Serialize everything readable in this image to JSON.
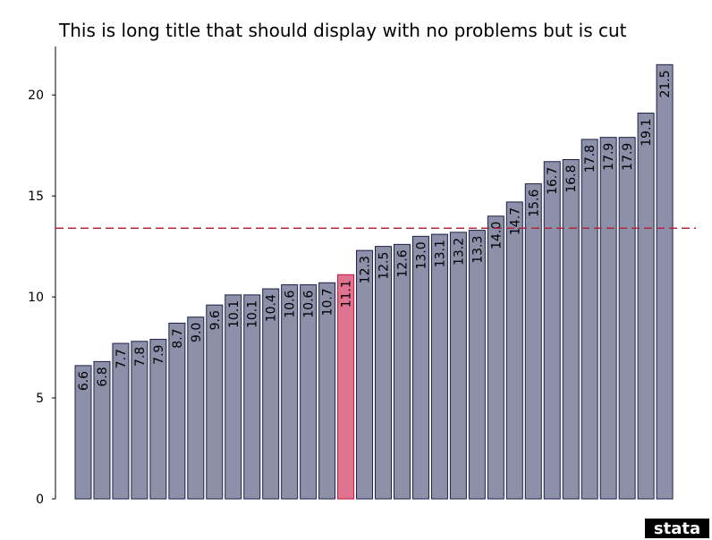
{
  "chart_data": {
    "type": "bar",
    "title": "This is long title that should display with no problems but is cut",
    "values": [
      6.6,
      6.8,
      7.7,
      7.8,
      7.9,
      8.7,
      9.0,
      9.6,
      10.1,
      10.1,
      10.4,
      10.6,
      10.6,
      10.7,
      11.1,
      12.3,
      12.5,
      12.6,
      13.0,
      13.1,
      13.2,
      13.3,
      14.0,
      14.7,
      15.6,
      16.7,
      16.8,
      17.8,
      17.9,
      17.9,
      19.1,
      21.5
    ],
    "value_labels": [
      "6.6",
      "6.8",
      "7.7",
      "7.8",
      "7.9",
      "8.7",
      "9.0",
      "9.6",
      "10.1",
      "10.1",
      "10.4",
      "10.6",
      "10.6",
      "10.7",
      "11.1",
      "12.3",
      "12.5",
      "12.6",
      "13.0",
      "13.1",
      "13.2",
      "13.3",
      "14.0",
      "14.7",
      "15.6",
      "16.7",
      "16.8",
      "17.8",
      "17.9",
      "17.9",
      "19.1",
      "21.5"
    ],
    "color": "#8c90a9",
    "highlight_index": 14,
    "highlight_color": "#e07490",
    "reference_line": 13.4,
    "reference_color": "#b0283c",
    "ylim": [
      0,
      22.4
    ],
    "yticks": [
      0,
      5,
      10,
      15,
      20
    ],
    "grid": false,
    "logo": "stata"
  }
}
